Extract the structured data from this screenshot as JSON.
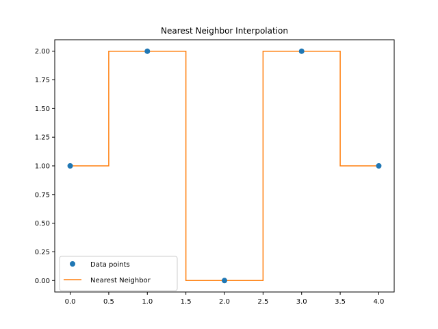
{
  "chart_data": {
    "type": "line",
    "title": "Nearest Neighbor Interpolation",
    "xlabel": "",
    "ylabel": "",
    "xlim": [
      -0.2,
      4.2
    ],
    "ylim": [
      -0.1,
      2.1
    ],
    "xticks": [
      "0.0",
      "0.5",
      "1.0",
      "1.5",
      "2.0",
      "2.5",
      "3.0",
      "3.5",
      "4.0"
    ],
    "yticks": [
      "0.00",
      "0.25",
      "0.50",
      "0.75",
      "1.00",
      "1.25",
      "1.50",
      "1.75",
      "2.00"
    ],
    "grid": false,
    "legend_position": "lower-left",
    "series": [
      {
        "name": "Data points",
        "kind": "scatter",
        "color": "#1f77b4",
        "x": [
          0,
          1,
          2,
          3,
          4
        ],
        "y": [
          1,
          2,
          0,
          2,
          1
        ]
      },
      {
        "name": "Nearest Neighbor",
        "kind": "step",
        "color": "#ff7f0e",
        "x": [
          0,
          0.5,
          0.5,
          1.5,
          1.5,
          2.5,
          2.5,
          3.5,
          3.5,
          4
        ],
        "y": [
          1,
          1,
          2,
          2,
          0,
          0,
          2,
          2,
          1,
          1
        ]
      }
    ]
  }
}
